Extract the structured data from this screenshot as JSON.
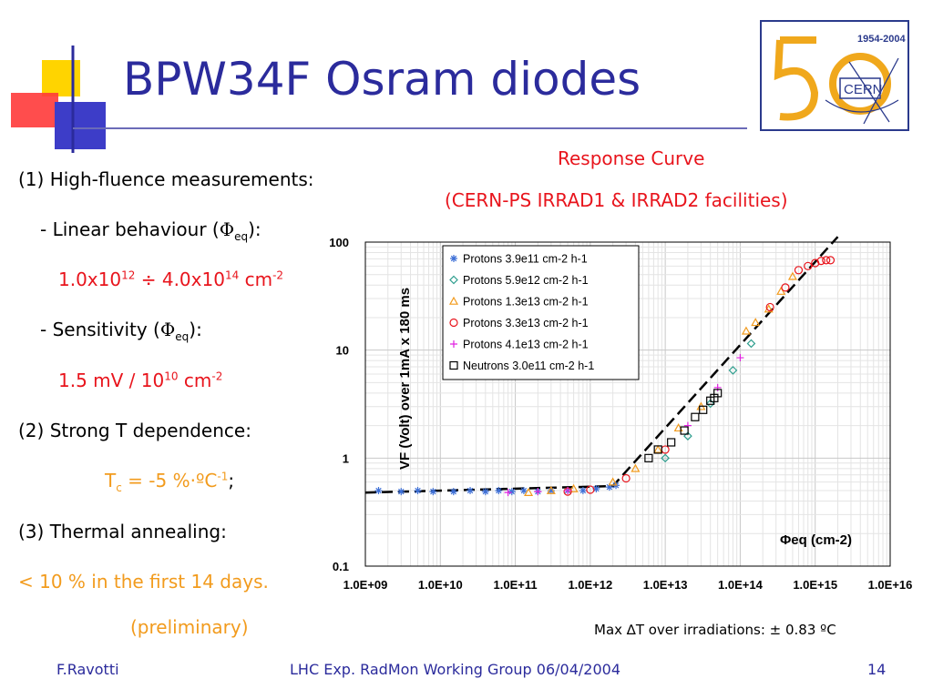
{
  "title": "BPW34F Osram diodes",
  "logo": {
    "years": "1954-2004",
    "name": "CERN",
    "number": "50"
  },
  "left": {
    "item1_num": "(1)",
    "item1_text": "High-fluence measurements:",
    "linear_label": "- Linear behaviour (",
    "linear_phi": "Φ",
    "linear_sub": "eq",
    "linear_end": "):",
    "range_a": "1.0x10",
    "range_a_exp": "12",
    "range_mid": " ÷ 4.0x10",
    "range_b_exp": "14",
    "range_unit": " cm",
    "range_unit_exp": "-2",
    "sens_label": "- Sensitivity (",
    "sens_phi": "Φ",
    "sens_sub": "eq",
    "sens_end": "):",
    "sens_value": "1.5 mV / 10",
    "sens_exp": "10",
    "sens_unit": " cm",
    "sens_unit_exp": "-2",
    "item2_num": "(2)",
    "item2_text": "Strong T dependence:",
    "tc_label": "T",
    "tc_sub": "c",
    "tc_value": " = -5 %·ºC",
    "tc_exp": "-1",
    "tc_end": ";",
    "item3_num": "(3)",
    "item3_text": "Thermal annealing:",
    "annealing_value": "< 10 % in the first 14 days.",
    "preliminary": "(preliminary)"
  },
  "response": {
    "title": "Response Curve",
    "subtitle": "(CERN-PS IRRAD1 & IRRAD2 facilities)"
  },
  "max_dt": "Max ∆T over irradiations: ± 0.83 ºC",
  "footer": {
    "author": "F.Ravotti",
    "center": "LHC Exp. RadMon Working Group 06/04/2004",
    "page": "14"
  },
  "colors": {
    "title": "#2b2b9c",
    "red": "#e8141c",
    "orange": "#f29b1d",
    "protons_1": "#3d6fd6",
    "protons_2": "#2e9e8e",
    "protons_3": "#f29b1d",
    "protons_4": "#e8141c",
    "protons_5": "#e020e0",
    "neutrons": "#000000"
  },
  "chart_data": {
    "type": "scatter",
    "x_log": true,
    "y_log": true,
    "xlim": [
      1000000000.0,
      1e+16
    ],
    "ylim": [
      0.1,
      100
    ],
    "x_ticks": [
      "1.0E+09",
      "1.0E+10",
      "1.0E+11",
      "1.0E+12",
      "1.0E+13",
      "1.0E+14",
      "1.0E+15",
      "1.0E+16"
    ],
    "y_ticks": [
      "0.1",
      "1",
      "10",
      "100"
    ],
    "ylabel": "VF (Volt) over 1mA x 180 ms",
    "xlabel": "Φeq (cm-2)",
    "grid": true,
    "legend_position": "top-left",
    "fit_line": [
      [
        1000000000.0,
        0.48
      ],
      [
        2000000000000.0,
        0.55
      ],
      [
        2000000000000000.0,
        112
      ]
    ],
    "series": [
      {
        "name": "Protons   3.9e11 cm-2 h-1",
        "marker": "asterisk",
        "color": "#3d6fd6",
        "points": [
          [
            1500000000.0,
            0.5
          ],
          [
            3000000000.0,
            0.49
          ],
          [
            5000000000.0,
            0.5
          ],
          [
            8000000000.0,
            0.49
          ],
          [
            15000000000.0,
            0.49
          ],
          [
            25000000000.0,
            0.5
          ],
          [
            40000000000.0,
            0.49
          ],
          [
            60000000000.0,
            0.5
          ],
          [
            90000000000.0,
            0.49
          ],
          [
            130000000000.0,
            0.5
          ],
          [
            200000000000.0,
            0.49
          ],
          [
            300000000000.0,
            0.5
          ],
          [
            500000000000.0,
            0.5
          ],
          [
            800000000000.0,
            0.5
          ],
          [
            1200000000000.0,
            0.52
          ],
          [
            1800000000000.0,
            0.54
          ],
          [
            2200000000000.0,
            0.56
          ]
        ]
      },
      {
        "name": "Protons   5.9e12 cm-2 h-1",
        "marker": "diamond",
        "color": "#2e9e8e",
        "points": [
          [
            10000000000000.0,
            1.0
          ],
          [
            20000000000000.0,
            1.6
          ],
          [
            40000000000000.0,
            3.2
          ],
          [
            80000000000000.0,
            6.5
          ],
          [
            140000000000000.0,
            11.5
          ]
        ]
      },
      {
        "name": "Protons   1.3e13 cm-2 h-1",
        "marker": "triangle",
        "color": "#f29b1d",
        "points": [
          [
            150000000000.0,
            0.48
          ],
          [
            300000000000.0,
            0.5
          ],
          [
            600000000000.0,
            0.52
          ],
          [
            2000000000000.0,
            0.6
          ],
          [
            4000000000000.0,
            0.8
          ],
          [
            8000000000000.0,
            1.2
          ],
          [
            15000000000000.0,
            1.9
          ],
          [
            30000000000000.0,
            3.0
          ],
          [
            120000000000000.0,
            15
          ],
          [
            160000000000000.0,
            18
          ],
          [
            240000000000000.0,
            24
          ],
          [
            350000000000000.0,
            35
          ],
          [
            500000000000000.0,
            48
          ]
        ]
      },
      {
        "name": "Protons   3.3e13 cm-2 h-1",
        "marker": "circle",
        "color": "#e8141c",
        "points": [
          [
            500000000000.0,
            0.49
          ],
          [
            1000000000000.0,
            0.51
          ],
          [
            3000000000000.0,
            0.65
          ],
          [
            10000000000000.0,
            1.2
          ],
          [
            250000000000000.0,
            25
          ],
          [
            400000000000000.0,
            38
          ],
          [
            600000000000000.0,
            55
          ],
          [
            800000000000000.0,
            60
          ],
          [
            1000000000000000.0,
            64
          ],
          [
            1200000000000000.0,
            67
          ],
          [
            1400000000000000.0,
            68
          ],
          [
            1600000000000000.0,
            68
          ]
        ]
      },
      {
        "name": "Protons   4.1e13 cm-2 h-1",
        "marker": "plus",
        "color": "#e020e0",
        "points": [
          [
            80000000000.0,
            0.48
          ],
          [
            200000000000.0,
            0.49
          ],
          [
            500000000000.0,
            0.5
          ],
          [
            20000000000000.0,
            2.0
          ],
          [
            50000000000000.0,
            4.5
          ],
          [
            100000000000000.0,
            8.5
          ]
        ]
      },
      {
        "name": "Neutrons 3.0e11 cm-2 h-1",
        "marker": "square",
        "color": "#000000",
        "points": [
          [
            6000000000000.0,
            1.0
          ],
          [
            8000000000000.0,
            1.2
          ],
          [
            12000000000000.0,
            1.4
          ],
          [
            18000000000000.0,
            1.8
          ],
          [
            25000000000000.0,
            2.4
          ],
          [
            32000000000000.0,
            2.8
          ],
          [
            40000000000000.0,
            3.4
          ],
          [
            50000000000000.0,
            4.0
          ],
          [
            45000000000000.0,
            3.6
          ]
        ]
      }
    ]
  }
}
